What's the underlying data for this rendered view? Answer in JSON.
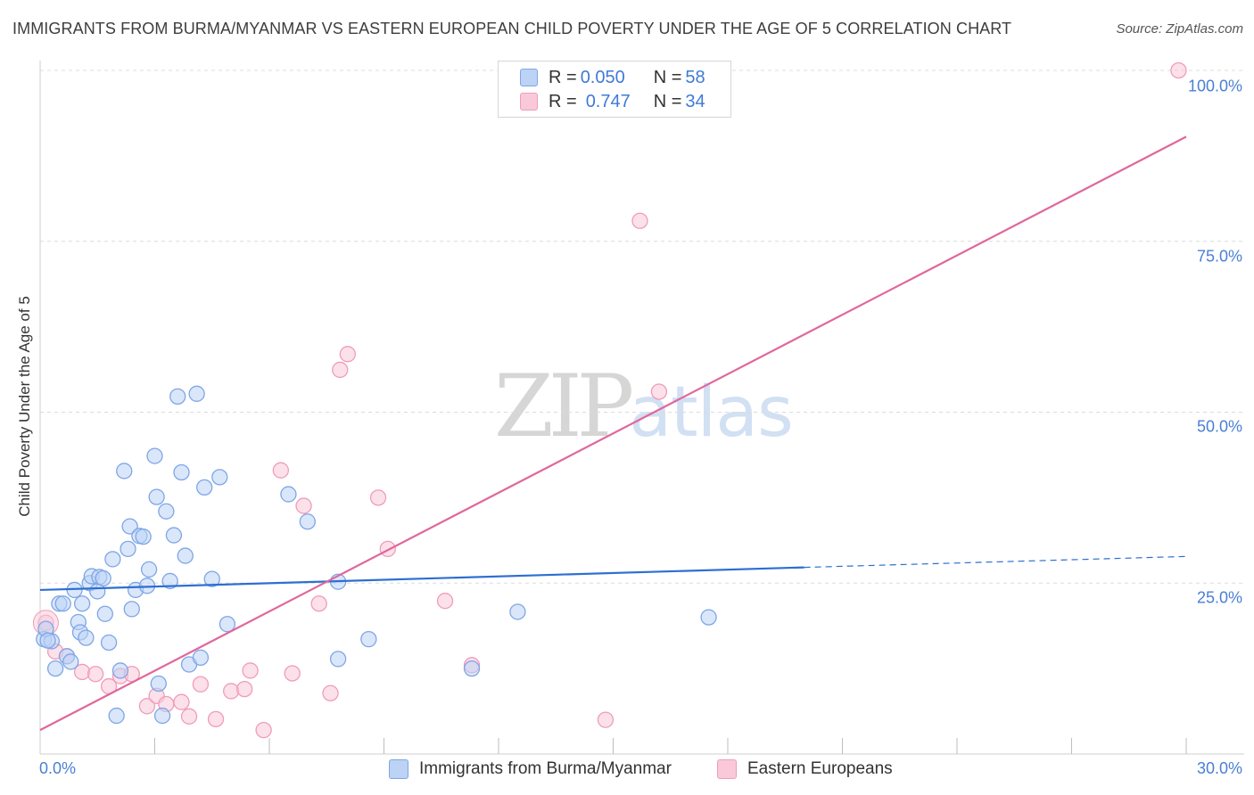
{
  "chart_data": {
    "type": "scatter",
    "title": "IMMIGRANTS FROM BURMA/MYANMAR VS EASTERN EUROPEAN CHILD POVERTY UNDER THE AGE OF 5 CORRELATION CHART",
    "source": "Source: ZipAtlas.com",
    "xlabel": "",
    "ylabel": "Child Poverty Under the Age of 5",
    "xlim": [
      0,
      30
    ],
    "ylim": [
      0,
      100
    ],
    "x_tick_labels": [
      "0.0%",
      "30.0%"
    ],
    "y_tick_values": [
      25,
      50,
      75,
      100
    ],
    "y_tick_labels": [
      "25.0%",
      "50.0%",
      "75.0%",
      "100.0%"
    ],
    "grid": true,
    "watermark": {
      "zip": "ZIP",
      "atlas": "atlas"
    },
    "stats": [
      {
        "r_label": "R = ",
        "r_value": "0.050",
        "n_label": "N = ",
        "n_value": "58"
      },
      {
        "r_label": "R = ",
        "r_value": "0.747",
        "n_label": "N = ",
        "n_value": "34"
      }
    ],
    "series": [
      {
        "name": "Immigrants from Burma/Myanmar",
        "color": "#7ea6e6",
        "fill": "#bcd3f5",
        "trend_color": "#2d6fd1",
        "trend": {
          "x0": 0,
          "y0": 24.0,
          "x1": 20.0,
          "y1": 27.3
        },
        "trend_dashed": {
          "x0": 20.0,
          "y0": 27.3,
          "x1": 30.0,
          "y1": 28.9
        },
        "points": [
          [
            0.1,
            16.8
          ],
          [
            0.3,
            16.5
          ],
          [
            0.4,
            12.5
          ],
          [
            0.5,
            22.0
          ],
          [
            0.6,
            22.0
          ],
          [
            0.7,
            14.3
          ],
          [
            0.8,
            13.5
          ],
          [
            0.9,
            24.0
          ],
          [
            1.0,
            19.3
          ],
          [
            1.05,
            17.8
          ],
          [
            1.1,
            22.0
          ],
          [
            1.2,
            17.0
          ],
          [
            1.3,
            25.0
          ],
          [
            1.35,
            26.0
          ],
          [
            1.5,
            23.8
          ],
          [
            1.55,
            25.9
          ],
          [
            1.65,
            25.7
          ],
          [
            1.7,
            20.5
          ],
          [
            1.8,
            16.3
          ],
          [
            1.9,
            28.5
          ],
          [
            2.0,
            5.6
          ],
          [
            2.1,
            12.2
          ],
          [
            2.2,
            41.4
          ],
          [
            2.3,
            30.0
          ],
          [
            2.35,
            33.3
          ],
          [
            2.4,
            21.2
          ],
          [
            2.5,
            24.0
          ],
          [
            2.6,
            31.9
          ],
          [
            2.7,
            31.8
          ],
          [
            2.8,
            24.6
          ],
          [
            2.85,
            27.0
          ],
          [
            3.0,
            43.6
          ],
          [
            3.05,
            37.6
          ],
          [
            3.1,
            10.3
          ],
          [
            3.2,
            5.6
          ],
          [
            3.3,
            35.5
          ],
          [
            3.4,
            25.3
          ],
          [
            3.5,
            32.0
          ],
          [
            3.6,
            52.3
          ],
          [
            3.7,
            41.2
          ],
          [
            3.8,
            29.0
          ],
          [
            3.9,
            13.1
          ],
          [
            4.1,
            52.7
          ],
          [
            4.2,
            14.1
          ],
          [
            4.3,
            39.0
          ],
          [
            4.5,
            25.6
          ],
          [
            4.7,
            40.5
          ],
          [
            4.9,
            19.0
          ],
          [
            6.5,
            38.0
          ],
          [
            7.0,
            34.0
          ],
          [
            7.8,
            25.2
          ],
          [
            7.8,
            13.9
          ],
          [
            8.6,
            16.8
          ],
          [
            11.3,
            12.5
          ],
          [
            12.5,
            20.8
          ],
          [
            17.5,
            20.0
          ],
          [
            0.15,
            18.3
          ],
          [
            0.2,
            16.6
          ]
        ]
      },
      {
        "name": "Eastern Europeans",
        "color": "#ef9cb9",
        "fill": "#f9c9d9",
        "trend_color": "#e0679b",
        "trend": {
          "x0": 0,
          "y0": 3.5,
          "x1": 30.0,
          "y1": 90.3
        },
        "points": [
          [
            0.15,
            19.2
          ],
          [
            0.4,
            15.0
          ],
          [
            0.7,
            14.3
          ],
          [
            1.1,
            12.0
          ],
          [
            1.45,
            11.7
          ],
          [
            1.8,
            9.9
          ],
          [
            2.1,
            11.4
          ],
          [
            2.4,
            11.7
          ],
          [
            2.8,
            7.0
          ],
          [
            3.05,
            8.5
          ],
          [
            3.3,
            7.3
          ],
          [
            3.7,
            7.6
          ],
          [
            3.9,
            5.5
          ],
          [
            4.2,
            10.2
          ],
          [
            4.6,
            5.1
          ],
          [
            5.0,
            9.2
          ],
          [
            5.35,
            9.5
          ],
          [
            5.5,
            12.2
          ],
          [
            5.85,
            3.5
          ],
          [
            6.3,
            41.5
          ],
          [
            6.6,
            11.8
          ],
          [
            6.9,
            36.3
          ],
          [
            7.3,
            22.0
          ],
          [
            7.6,
            8.9
          ],
          [
            7.85,
            56.2
          ],
          [
            8.05,
            58.5
          ],
          [
            8.85,
            37.5
          ],
          [
            9.1,
            30.0
          ],
          [
            10.6,
            22.4
          ],
          [
            11.3,
            13.0
          ],
          [
            14.8,
            5.0
          ],
          [
            15.7,
            78.0
          ],
          [
            16.2,
            53.0
          ],
          [
            29.8,
            100.0
          ]
        ]
      }
    ]
  }
}
